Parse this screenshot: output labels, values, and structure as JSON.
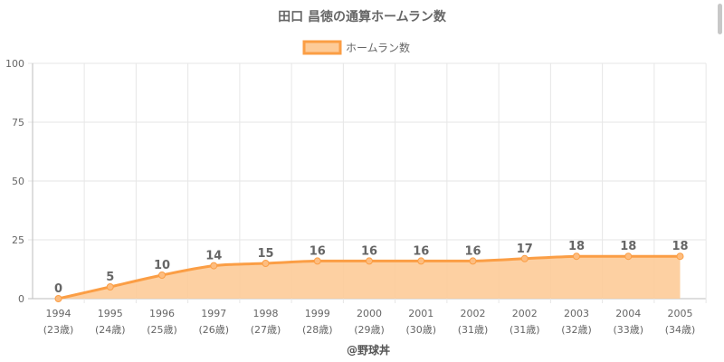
{
  "chart_data": {
    "type": "line",
    "title": "田口 昌徳の通算ホームラン数",
    "legend": {
      "label": "ホームラン数",
      "position": "top-center"
    },
    "categories": [
      "1994",
      "1995",
      "1996",
      "1997",
      "1998",
      "1999",
      "2000",
      "2001",
      "2002",
      "2002",
      "2003",
      "2004",
      "2005"
    ],
    "sub_labels": [
      "(23歳)",
      "(24歳)",
      "(25歳)",
      "(26歳)",
      "(27歳)",
      "(28歳)",
      "(29歳)",
      "(30歳)",
      "(31歳)",
      "(31歳)",
      "(32歳)",
      "(33歳)",
      "(34歳)"
    ],
    "series": [
      {
        "name": "ホームラン数",
        "values": [
          0,
          5,
          10,
          14,
          15,
          16,
          16,
          16,
          16,
          17,
          18,
          18,
          18
        ]
      }
    ],
    "ylim": [
      0,
      100
    ],
    "yticks": [
      0,
      25,
      50,
      75,
      100
    ],
    "grid": true,
    "fill": true,
    "colors": {
      "line": "#fb9e45",
      "fill": "#fdcb98",
      "point": "#fdbd80"
    },
    "credit": "@野球丼"
  }
}
